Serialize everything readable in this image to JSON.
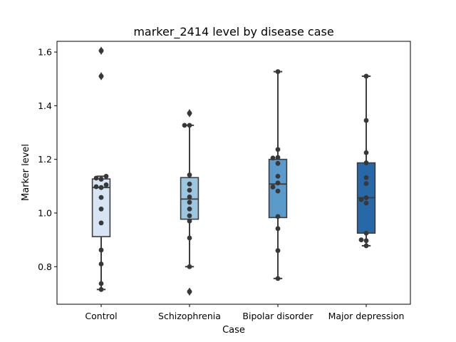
{
  "chart_data": {
    "type": "box",
    "title": "marker_2414 level by disease case",
    "xlabel": "Case",
    "ylabel": "Marker level",
    "ylim": [
      0.66,
      1.64
    ],
    "yticks": [
      0.8,
      1.0,
      1.2,
      1.4,
      1.6
    ],
    "ytick_labels": [
      "0.8",
      "1.0",
      "1.2",
      "1.4",
      "1.6"
    ],
    "grid": false,
    "categories": [
      "Control",
      "Schizophrenia",
      "Bipolar disorder",
      "Major depression"
    ],
    "colors": [
      "#d6e4f3",
      "#9dc6e0",
      "#5a9bcb",
      "#2769a8"
    ],
    "boxes": [
      {
        "q1": 0.912,
        "median": 1.095,
        "q3": 1.127,
        "whislo": 0.715,
        "whishi": 1.137,
        "fliers": [
          1.51,
          1.605
        ]
      },
      {
        "q1": 0.977,
        "median": 1.052,
        "q3": 1.132,
        "whislo": 0.8,
        "whishi": 1.327,
        "fliers": [
          0.707,
          1.372
        ]
      },
      {
        "q1": 0.983,
        "median": 1.108,
        "q3": 1.2,
        "whislo": 0.756,
        "whishi": 1.527,
        "fliers": []
      },
      {
        "q1": 0.925,
        "median": 1.057,
        "q3": 1.187,
        "whislo": 0.878,
        "whishi": 1.51,
        "fliers": []
      }
    ],
    "points": [
      [
        0.715,
        0.737,
        0.81,
        0.862,
        0.963,
        1.015,
        1.058,
        1.095,
        1.098,
        1.105,
        1.126,
        1.13,
        1.137,
        1.51,
        1.605
      ],
      [
        0.707,
        0.8,
        0.907,
        0.97,
        0.99,
        1.015,
        1.04,
        1.06,
        1.085,
        1.108,
        1.142,
        1.327,
        1.327,
        1.372
      ],
      [
        0.756,
        0.86,
        0.942,
        0.987,
        1.082,
        1.097,
        1.112,
        1.137,
        1.185,
        1.207,
        1.205,
        1.237,
        1.527
      ],
      [
        0.878,
        0.897,
        0.9,
        0.925,
        1.037,
        1.05,
        1.057,
        1.11,
        1.132,
        1.187,
        1.225,
        1.345,
        1.51
      ]
    ]
  }
}
